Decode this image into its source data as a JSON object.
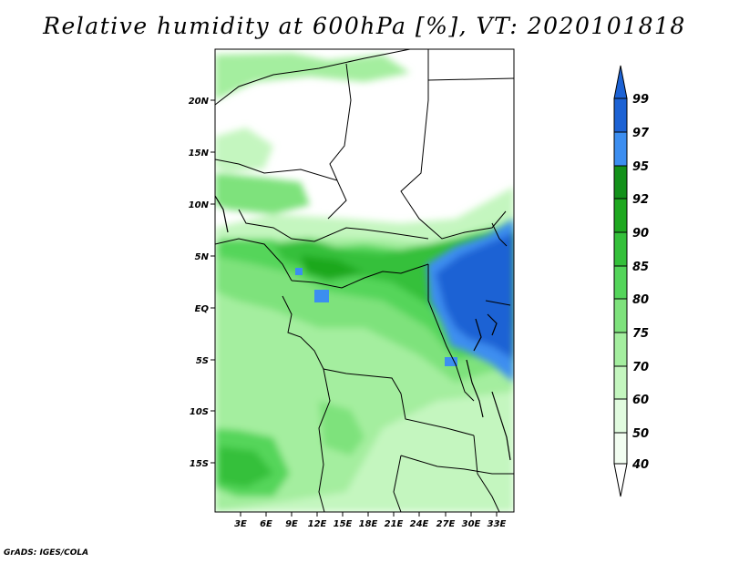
{
  "title": "Relative humidity at 600hPa [%], VT: 2020101818",
  "map": {
    "lat_labels": [
      "20N",
      "15N",
      "10N",
      "5N",
      "EQ",
      "5S",
      "10S",
      "15S"
    ],
    "lon_labels": [
      "3E",
      "6E",
      "9E",
      "12E",
      "15E",
      "18E",
      "21E",
      "24E",
      "27E",
      "30E",
      "33E"
    ]
  },
  "colorbar": {
    "labels": [
      "99",
      "97",
      "95",
      "92",
      "90",
      "85",
      "80",
      "75",
      "70",
      "60",
      "50",
      "40"
    ],
    "colors": {
      "c99": "#1c62d4",
      "c97": "#3c8ef0",
      "c95": "#13911a",
      "c92": "#1ea81f",
      "c90": "#34c03a",
      "c85": "#54d55a",
      "c80": "#7ee27c",
      "c75": "#a4ee9f",
      "c70": "#c4f6bf",
      "c60": "#e1fbdf",
      "c50": "#f2fdf1"
    }
  },
  "credit": "GrADS: IGES/COLA"
}
